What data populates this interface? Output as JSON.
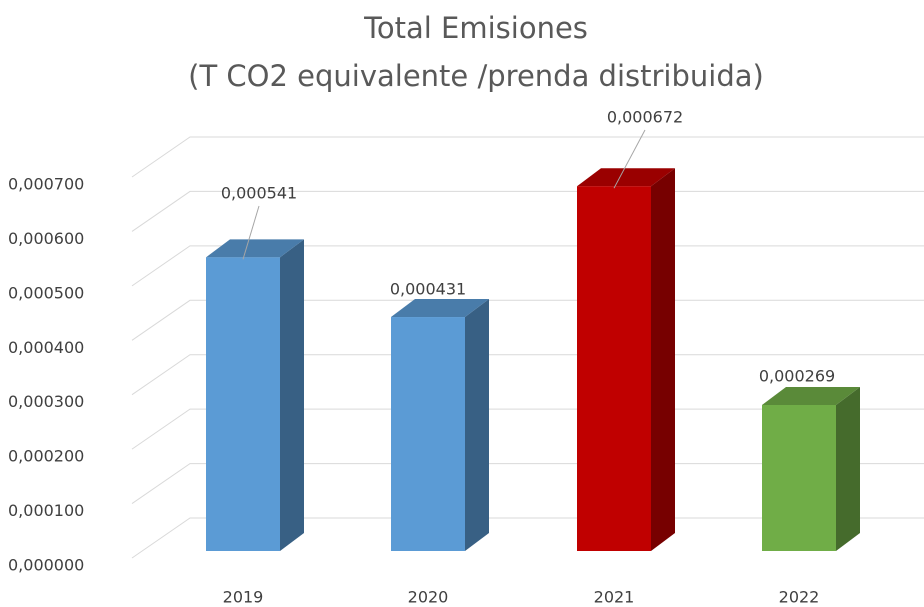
{
  "chart_data": {
    "type": "bar3d",
    "title": "Total Emisiones",
    "subtitle": "(T CO2 equivalente /prenda distribuida)",
    "categories": [
      "2019",
      "2020",
      "2021",
      "2022"
    ],
    "values": [
      0.000541,
      0.000431,
      0.000672,
      0.000269
    ],
    "value_labels": [
      "0,000541",
      "0,000431",
      "0,000672",
      "0,000269"
    ],
    "colors": [
      "#5b9bd5",
      "#5b9bd5",
      "#c00000",
      "#70ad47"
    ],
    "ylim": [
      0,
      0.0007
    ],
    "yticks": [
      {
        "value": 0,
        "label": "0,000000"
      },
      {
        "value": 0.0001,
        "label": "0,000100"
      },
      {
        "value": 0.0002,
        "label": "0,000200"
      },
      {
        "value": 0.0003,
        "label": "0,000300"
      },
      {
        "value": 0.0004,
        "label": "0,000400"
      },
      {
        "value": 0.0005,
        "label": "0,000500"
      },
      {
        "value": 0.0006,
        "label": "0,000600"
      },
      {
        "value": 0.0007,
        "label": "0,000700"
      }
    ],
    "grid": true
  }
}
